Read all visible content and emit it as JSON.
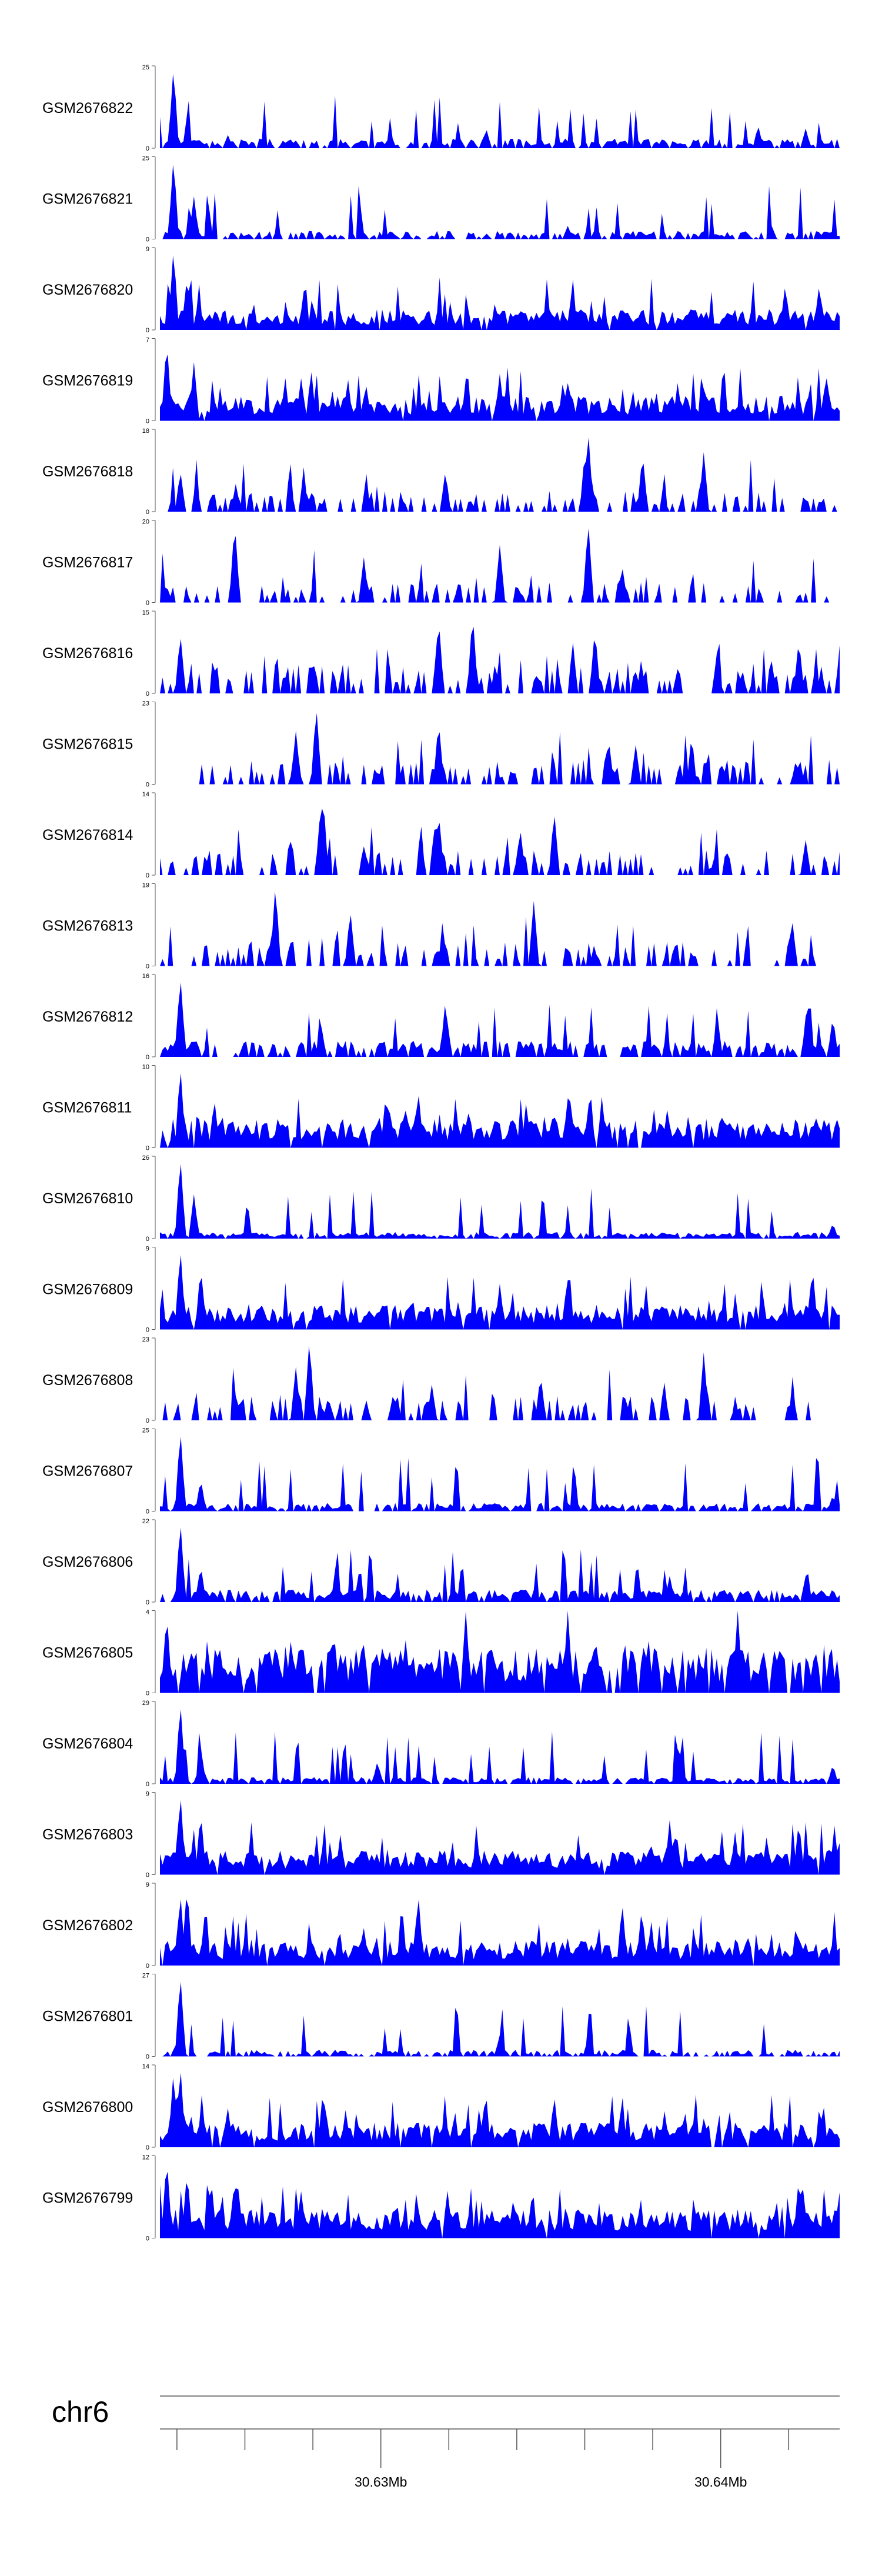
{
  "colors": {
    "signal": "#0000ff",
    "axis": "#333333",
    "text": "#000000"
  },
  "chart_data": {
    "type": "area",
    "title": "",
    "chromosome": "chr6",
    "x_range_mb": [
      30.6235,
      30.6435
    ],
    "tick_step_mb": 0.002,
    "labeled_ticks": [
      {
        "value_mb": 30.63,
        "label": "30.63Mb"
      },
      {
        "value_mb": 30.64,
        "label": "30.64Mb"
      }
    ],
    "tracks": [
      {
        "name": "GSM2676822",
        "ymax": 25,
        "ymin": 0,
        "seed": 11,
        "peaks": [
          [
            0.02,
            25
          ],
          [
            0.1,
            4
          ],
          [
            0.48,
            6
          ],
          [
            0.88,
            7
          ],
          [
            0.95,
            6
          ]
        ],
        "sparse": 0.25,
        "base": 0.12
      },
      {
        "name": "GSM2676821",
        "ymax": 25,
        "ymin": 0,
        "seed": 12,
        "peaks": [
          [
            0.02,
            25
          ],
          [
            0.05,
            13
          ],
          [
            0.6,
            4
          ],
          [
            0.9,
            4
          ]
        ],
        "sparse": 0.3,
        "base": 0.1
      },
      {
        "name": "GSM2676820",
        "ymax": 9,
        "ymin": 0,
        "seed": 13,
        "peaks": [
          [
            0.02,
            9
          ],
          [
            0.04,
            6
          ],
          [
            0.92,
            5
          ],
          [
            0.97,
            5
          ]
        ],
        "sparse": 0.05,
        "base": 0.25
      },
      {
        "name": "GSM2676819",
        "ymax": 7,
        "ymin": 0,
        "seed": 14,
        "peaks": [
          [
            0.01,
            7
          ],
          [
            0.05,
            5
          ],
          [
            0.5,
            4
          ],
          [
            0.98,
            4
          ]
        ],
        "sparse": 0.02,
        "base": 0.3
      },
      {
        "name": "GSM2676818",
        "ymax": 18,
        "ymin": 0,
        "seed": 15,
        "peaks": [
          [
            0.03,
            9
          ],
          [
            0.63,
            18
          ],
          [
            0.42,
            9
          ],
          [
            0.71,
            13
          ],
          [
            0.8,
            13
          ]
        ],
        "sparse": 0.55,
        "base": 0.25
      },
      {
        "name": "GSM2676817",
        "ymax": 20,
        "ymin": 0,
        "seed": 16,
        "peaks": [
          [
            0.11,
            20
          ],
          [
            0.63,
            20
          ],
          [
            0.5,
            14
          ],
          [
            0.3,
            11
          ],
          [
            0.68,
            9
          ]
        ],
        "sparse": 0.7,
        "base": 0.25
      },
      {
        "name": "GSM2676816",
        "ymax": 15,
        "ymin": 0,
        "seed": 17,
        "peaks": [
          [
            0.03,
            11
          ],
          [
            0.46,
            15
          ],
          [
            0.41,
            14
          ],
          [
            0.64,
            12
          ],
          [
            0.82,
            8
          ],
          [
            0.94,
            10
          ]
        ],
        "sparse": 0.55,
        "base": 0.35
      },
      {
        "name": "GSM2676815",
        "ymax": 23,
        "ymin": 0,
        "seed": 18,
        "peaks": [
          [
            0.23,
            22
          ],
          [
            0.41,
            18
          ],
          [
            0.2,
            15
          ],
          [
            0.66,
            13
          ],
          [
            0.7,
            11
          ]
        ],
        "sparse": 0.6,
        "base": 0.3,
        "start": 0.06
      },
      {
        "name": "GSM2676814",
        "ymax": 14,
        "ymin": 0,
        "seed": 19,
        "peaks": [
          [
            0.24,
            14
          ],
          [
            0.41,
            11
          ],
          [
            0.58,
            11
          ],
          [
            0.53,
            8
          ],
          [
            0.95,
            6
          ]
        ],
        "sparse": 0.6,
        "base": 0.3
      },
      {
        "name": "GSM2676813",
        "ymax": 19,
        "ymin": 0,
        "seed": 20,
        "peaks": [
          [
            0.17,
            19
          ],
          [
            0.55,
            15
          ],
          [
            0.28,
            13
          ],
          [
            0.93,
            11
          ]
        ],
        "sparse": 0.6,
        "base": 0.3,
        "end": 0.97
      },
      {
        "name": "GSM2676812",
        "ymax": 16,
        "ymin": 0,
        "seed": 21,
        "peaks": [
          [
            0.03,
            16
          ],
          [
            0.42,
            11
          ],
          [
            0.82,
            8
          ],
          [
            0.99,
            8
          ]
        ],
        "sparse": 0.3,
        "base": 0.2
      },
      {
        "name": "GSM2676811",
        "ymax": 10,
        "ymin": 0,
        "seed": 22,
        "peaks": [
          [
            0.03,
            10
          ],
          [
            0.08,
            6
          ],
          [
            0.38,
            7
          ],
          [
            0.6,
            6
          ]
        ],
        "sparse": 0.05,
        "base": 0.35
      },
      {
        "name": "GSM2676810",
        "ymax": 26,
        "ymin": 0,
        "seed": 23,
        "peaks": [
          [
            0.03,
            26
          ],
          [
            0.05,
            14
          ],
          [
            0.6,
            4
          ],
          [
            0.99,
            5
          ]
        ],
        "sparse": 0.15,
        "base": 0.08
      },
      {
        "name": "GSM2676809",
        "ymax": 9,
        "ymin": 0,
        "seed": 24,
        "peaks": [
          [
            0.03,
            9
          ],
          [
            0.06,
            7
          ],
          [
            0.5,
            5
          ],
          [
            0.96,
            7
          ]
        ],
        "sparse": 0.03,
        "base": 0.3
      },
      {
        "name": "GSM2676808",
        "ymax": 23,
        "ymin": 0,
        "seed": 25,
        "peaks": [
          [
            0.22,
            23
          ],
          [
            0.2,
            15
          ],
          [
            0.8,
            19
          ],
          [
            0.56,
            13
          ],
          [
            0.4,
            10
          ]
        ],
        "sparse": 0.6,
        "base": 0.3,
        "end": 0.97
      },
      {
        "name": "GSM2676807",
        "ymax": 25,
        "ymin": 0,
        "seed": 26,
        "peaks": [
          [
            0.03,
            25
          ],
          [
            0.06,
            10
          ],
          [
            0.99,
            5
          ]
        ],
        "sparse": 0.2,
        "base": 0.1
      },
      {
        "name": "GSM2676806",
        "ymax": 22,
        "ymin": 0,
        "seed": 27,
        "peaks": [
          [
            0.03,
            22
          ],
          [
            0.06,
            10
          ],
          [
            0.75,
            7
          ],
          [
            0.95,
            7
          ]
        ],
        "sparse": 0.15,
        "base": 0.15
      },
      {
        "name": "GSM2676805",
        "ymax": 4,
        "ymin": 0,
        "seed": 28,
        "peaks": [
          [
            0.01,
            4
          ],
          [
            0.45,
            4
          ],
          [
            0.6,
            4
          ],
          [
            0.85,
            4
          ]
        ],
        "sparse": 0.08,
        "base": 0.55
      },
      {
        "name": "GSM2676804",
        "ymax": 29,
        "ymin": 0,
        "seed": 29,
        "peaks": [
          [
            0.03,
            29
          ],
          [
            0.06,
            13
          ],
          [
            0.32,
            8
          ],
          [
            0.99,
            7
          ]
        ],
        "sparse": 0.15,
        "base": 0.08
      },
      {
        "name": "GSM2676803",
        "ymax": 9,
        "ymin": 0,
        "seed": 30,
        "peaks": [
          [
            0.03,
            9
          ],
          [
            0.06,
            7
          ],
          [
            0.75,
            6
          ],
          [
            0.94,
            6
          ]
        ],
        "sparse": 0.03,
        "base": 0.3
      },
      {
        "name": "GSM2676802",
        "ymax": 9,
        "ymin": 0,
        "seed": 31,
        "peaks": [
          [
            0.03,
            8
          ],
          [
            0.04,
            9
          ],
          [
            0.38,
            8
          ],
          [
            0.68,
            7
          ]
        ],
        "sparse": 0.03,
        "base": 0.3
      },
      {
        "name": "GSM2676801",
        "ymax": 27,
        "ymin": 0,
        "seed": 32,
        "peaks": [
          [
            0.03,
            27
          ],
          [
            0.5,
            7
          ],
          [
            0.63,
            6
          ]
        ],
        "sparse": 0.25,
        "base": 0.08
      },
      {
        "name": "GSM2676800",
        "ymax": 14,
        "ymin": 0,
        "seed": 33,
        "peaks": [
          [
            0.02,
            13
          ],
          [
            0.03,
            14
          ],
          [
            0.24,
            10
          ],
          [
            0.58,
            9
          ]
        ],
        "sparse": 0.05,
        "base": 0.3
      },
      {
        "name": "GSM2676799",
        "ymax": 12,
        "ymin": 0,
        "seed": 34,
        "peaks": [
          [
            0.01,
            12
          ],
          [
            0.04,
            10
          ],
          [
            0.11,
            9
          ],
          [
            0.94,
            9
          ]
        ],
        "sparse": 0.03,
        "base": 0.35
      }
    ]
  }
}
